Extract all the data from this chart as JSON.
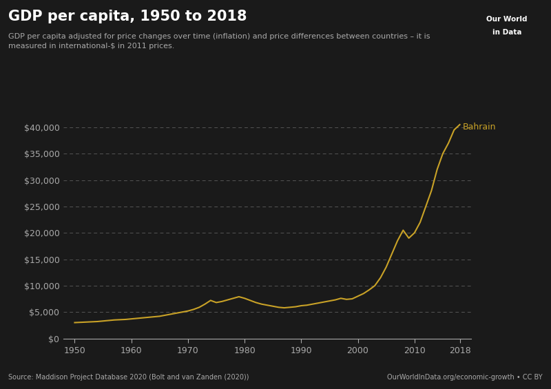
{
  "title": "GDP per capita, 1950 to 2018",
  "subtitle": "GDP per capita adjusted for price changes over time (inflation) and price differences between countries – it is\nmeasured in international-$ in 2011 prices.",
  "source_left": "Source: Maddison Project Database 2020 (Bolt and van Zanden (2020))",
  "source_right": "OurWorldInData.org/economic-growth • CC BY",
  "label": "Bahrain",
  "line_color": "#c9a227",
  "background_color": "#1a1a1a",
  "text_color": "#aaaaaa",
  "title_color": "#ffffff",
  "subtitle_color": "#aaaaaa",
  "grid_color": "#555555",
  "logo_bg": "#c0392b",
  "ylim": [
    0,
    42000
  ],
  "yticks": [
    0,
    5000,
    10000,
    15000,
    20000,
    25000,
    30000,
    35000,
    40000
  ],
  "xlim": [
    1948,
    2020
  ],
  "xticks": [
    1950,
    1960,
    1970,
    1980,
    1990,
    2000,
    2010,
    2018
  ],
  "years": [
    1950,
    1951,
    1952,
    1953,
    1954,
    1955,
    1956,
    1957,
    1958,
    1959,
    1960,
    1961,
    1962,
    1963,
    1964,
    1965,
    1966,
    1967,
    1968,
    1969,
    1970,
    1971,
    1972,
    1973,
    1974,
    1975,
    1976,
    1977,
    1978,
    1979,
    1980,
    1981,
    1982,
    1983,
    1984,
    1985,
    1986,
    1987,
    1988,
    1989,
    1990,
    1991,
    1992,
    1993,
    1994,
    1995,
    1996,
    1997,
    1998,
    1999,
    2000,
    2001,
    2002,
    2003,
    2004,
    2005,
    2006,
    2007,
    2008,
    2009,
    2010,
    2011,
    2012,
    2013,
    2014,
    2015,
    2016,
    2017,
    2018
  ],
  "gdp": [
    3000,
    3050,
    3100,
    3150,
    3200,
    3300,
    3400,
    3500,
    3550,
    3600,
    3700,
    3800,
    3900,
    4000,
    4100,
    4200,
    4400,
    4600,
    4800,
    5000,
    5200,
    5500,
    5900,
    6500,
    7200,
    6800,
    7000,
    7300,
    7600,
    7900,
    7600,
    7200,
    6800,
    6500,
    6300,
    6100,
    5900,
    5800,
    5900,
    6000,
    6200,
    6300,
    6500,
    6700,
    6900,
    7100,
    7300,
    7600,
    7400,
    7500,
    8000,
    8500,
    9200,
    10000,
    11500,
    13500,
    16000,
    18500,
    20500,
    19000,
    20000,
    22000,
    25000,
    28000,
    32000,
    35000,
    37000,
    39500,
    40500
  ]
}
